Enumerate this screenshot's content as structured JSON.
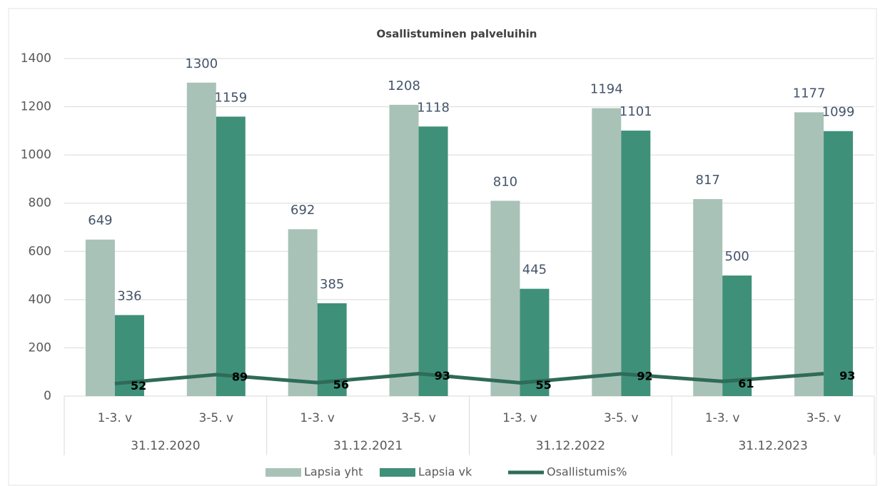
{
  "chart_data": {
    "type": "bar",
    "title": "Osallistuminen palveluihin",
    "categories": [
      "1-3. v",
      "3-5. v",
      "1-3. v",
      "3-5. v",
      "1-3. v",
      "3-5. v",
      "1-3. v",
      "3-5. v"
    ],
    "groups": [
      "31.12.2020",
      "31.12.2021",
      "31.12.2022",
      "31.12.2023"
    ],
    "series": [
      {
        "name": "Lapsia yht",
        "color": "#a9c2b7",
        "values": [
          649,
          1300,
          692,
          1208,
          810,
          1194,
          817,
          1177
        ]
      },
      {
        "name": "Lapsia vk",
        "color": "#3f9078",
        "values": [
          336,
          1159,
          385,
          1118,
          445,
          1101,
          500,
          1099
        ]
      },
      {
        "name": "Osallistumis%",
        "type": "line",
        "color": "#2e6b58",
        "values": [
          52,
          89,
          56,
          93,
          55,
          92,
          61,
          93
        ]
      }
    ],
    "ylim": [
      0,
      1400
    ],
    "yticks": [
      0,
      200,
      400,
      600,
      800,
      1000,
      1200,
      1400
    ],
    "grid": true,
    "legend": "bottom"
  }
}
